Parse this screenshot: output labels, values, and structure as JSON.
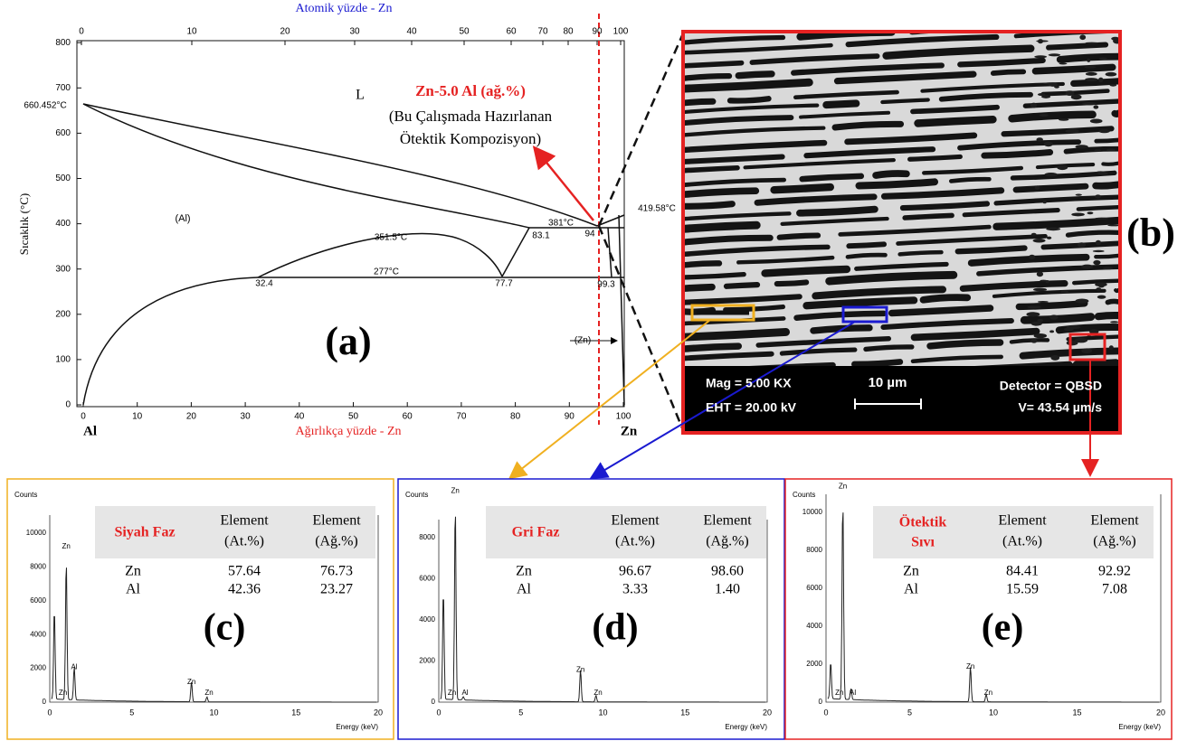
{
  "panel_a": {
    "top_axis_title": "Atomik yüzde - Zn",
    "top_ticks": [
      "0",
      "10",
      "20",
      "30",
      "40",
      "50",
      "60",
      "70",
      "80",
      "90",
      "100"
    ],
    "y_axis_title": "Sıcaklık (°C)",
    "y_ticks": [
      "0",
      "100",
      "200",
      "300",
      "400",
      "500",
      "600",
      "700",
      "800"
    ],
    "bottom_ticks": [
      "0",
      "10",
      "20",
      "30",
      "40",
      "50",
      "60",
      "70",
      "80",
      "90",
      "100"
    ],
    "bottom_axis_title": "Ağırlıkça yüzde - Zn",
    "left_element": "Al",
    "right_element": "Zn",
    "annotations": [
      "660.452°C",
      "L",
      "(Al)",
      "351.5°C",
      "277°C",
      "32.4",
      "77.7",
      "83.1",
      "381°C",
      "94",
      "419.58°C",
      "99.3",
      "(Zn)"
    ],
    "callout": {
      "title": "Zn-5.0 Al (ağ.%)",
      "lines": [
        "(Bu Çalışmada Hazırlanan",
        "Ötektik Kompozisyon)"
      ]
    },
    "label": "(a)"
  },
  "panel_b": {
    "info": [
      "Mag = 5.00 KX",
      "EHT = 20.00 kV",
      "Detector = QBSD",
      "V= 43.54 µm/s"
    ],
    "scale": "10 µm",
    "label": "(b)"
  },
  "spectra": [
    {
      "phase": [
        "Siyah Faz"
      ],
      "headers": [
        [
          "Element",
          "(At.%)"
        ],
        [
          "Element",
          "(Ağ.%)"
        ]
      ],
      "rows": [
        [
          "Zn",
          "57.64",
          "76.73"
        ],
        [
          "Al",
          "42.36",
          "23.27"
        ]
      ],
      "y_title": "Counts",
      "y_ticks": [
        "0",
        "2000",
        "4000",
        "6000",
        "8000",
        "10000"
      ],
      "x_title": "Energy (keV)",
      "x_ticks": [
        "0",
        "5",
        "10",
        "15",
        "20"
      ],
      "peak_labels": [
        "Zn",
        "Zn",
        "Al",
        "Zn",
        "Zn"
      ],
      "label": "(c)"
    },
    {
      "phase": [
        "Gri Faz"
      ],
      "headers": [
        [
          "Element",
          "(At.%)"
        ],
        [
          "Element",
          "(Ağ.%)"
        ]
      ],
      "rows": [
        [
          "Zn",
          "96.67",
          "98.60"
        ],
        [
          "Al",
          "3.33",
          "1.40"
        ]
      ],
      "y_title": "Counts",
      "y_ticks": [
        "0",
        "2000",
        "4000",
        "6000",
        "8000"
      ],
      "x_title": "Energy (keV)",
      "x_ticks": [
        "0",
        "5",
        "10",
        "15",
        "20"
      ],
      "peak_labels": [
        "Zn",
        "Zn",
        "Al",
        "Zn",
        "Zn"
      ],
      "label": "(d)"
    },
    {
      "phase": [
        "Ötektik",
        "Sıvı"
      ],
      "headers": [
        [
          "Element",
          "(At.%)"
        ],
        [
          "Element",
          "(Ağ.%)"
        ]
      ],
      "rows": [
        [
          "Zn",
          "84.41",
          "92.92"
        ],
        [
          "Al",
          "15.59",
          "7.08"
        ]
      ],
      "y_title": "Counts",
      "y_ticks": [
        "0",
        "2000",
        "4000",
        "6000",
        "8000",
        "10000"
      ],
      "x_title": "Energy (keV)",
      "x_ticks": [
        "0",
        "5",
        "10",
        "15",
        "20"
      ],
      "peak_labels": [
        "Zn",
        "Zn",
        "Al",
        "Zn",
        "Zn"
      ],
      "label": "(e)"
    }
  ]
}
